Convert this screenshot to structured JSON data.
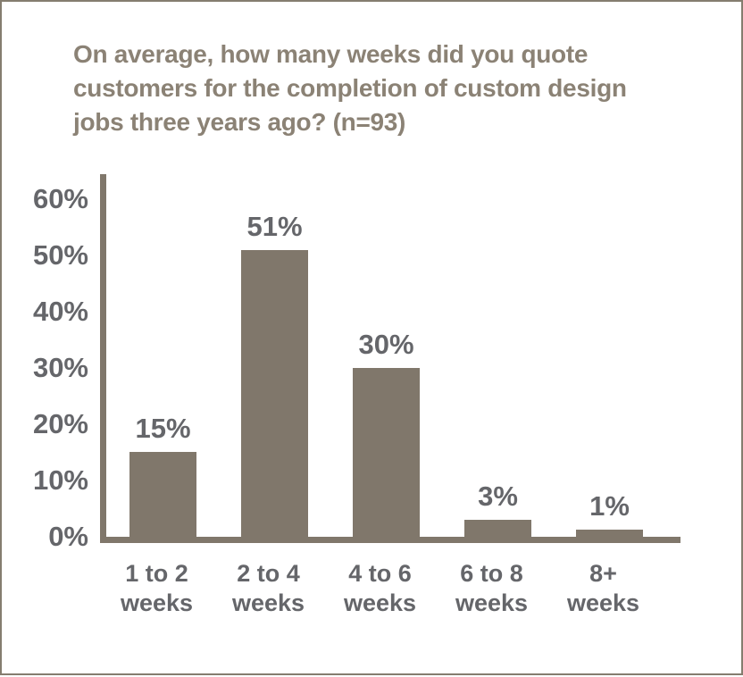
{
  "page": {
    "background_color": "#ffffff",
    "border_color": "#857d6f"
  },
  "title": {
    "lines": [
      "On average, how many weeks did you quote",
      "customers for the completion of custom design",
      "jobs three years ago? (n=93)"
    ],
    "color": "#8b8275"
  },
  "chart_data": {
    "type": "bar",
    "title": "On average, how many weeks did you quote customers for the completion of custom design jobs three years ago? (n=93)",
    "sample_size_label": "n=93",
    "categories": [
      "1 to 2 weeks",
      "2 to 4 weeks",
      "4 to 6 weeks",
      "6 to 8 weeks",
      "8+ weeks"
    ],
    "category_lines": [
      [
        "1 to 2",
        "weeks"
      ],
      [
        "2 to 4",
        "weeks"
      ],
      [
        "4 to 6",
        "weeks"
      ],
      [
        "6 to 8",
        "weeks"
      ],
      [
        "8+",
        "weeks"
      ]
    ],
    "values": [
      15,
      51,
      30,
      3,
      1
    ],
    "value_labels": [
      "15%",
      "51%",
      "30%",
      "3%",
      "1%"
    ],
    "y_ticks": [
      {
        "value": 60,
        "label": "60%"
      },
      {
        "value": 50,
        "label": "50%"
      },
      {
        "value": 40,
        "label": "40%"
      },
      {
        "value": 30,
        "label": "30%"
      },
      {
        "value": 20,
        "label": "20%"
      },
      {
        "value": 10,
        "label": "10%"
      },
      {
        "value": 0,
        "label": "0%"
      }
    ],
    "ylim": [
      0,
      60
    ],
    "xlabel": "",
    "ylabel": "",
    "grid": false,
    "legend": null,
    "bar_color": "#80776b",
    "axis_color": "#80776b",
    "tick_label_color": "#65666a",
    "data_label_color": "#65666a"
  }
}
